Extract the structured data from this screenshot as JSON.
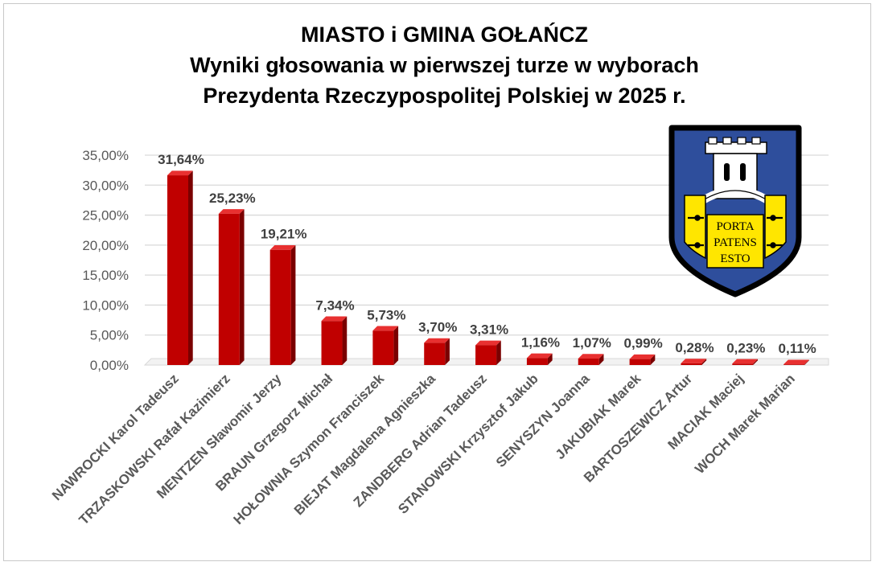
{
  "chart_data": {
    "type": "bar",
    "title": "MIASTO i GMINA GOŁAŃCZ",
    "subtitle": [
      "Wyniki głosowania w pierwszej turze w wyborach",
      "Prezydenta Rzeczypospolitej Polskiej w 2025 r."
    ],
    "xlabel": "",
    "ylabel": "",
    "ylim": [
      0,
      35
    ],
    "yticks": [
      "0,00%",
      "5,00%",
      "10,00%",
      "15,00%",
      "20,00%",
      "25,00%",
      "30,00%",
      "35,00%"
    ],
    "grid": true,
    "legend": "none",
    "categories": [
      "NAWROCKI Karol Tadeusz",
      "TRZASKOWSKI Rafał Kazimierz",
      "MENTZEN Sławomir Jerzy",
      "BRAUN Grzegorz Michał",
      "HOŁOWNIA Szymon Franciszek",
      "BIEJAT Magdalena Agnieszka",
      "ZANDBERG Adrian Tadeusz",
      "STANOWSKI Krzysztof Jakub",
      "SENYSZYN Joanna",
      "JAKUBIAK Marek",
      "BARTOSZEWICZ Artur",
      "MACIAK Maciej",
      "WOCH Marek Marian"
    ],
    "values": [
      31.64,
      25.23,
      19.21,
      7.34,
      5.73,
      3.7,
      3.31,
      1.16,
      1.07,
      0.99,
      0.28,
      0.23,
      0.11
    ],
    "data_labels": [
      "31,64%",
      "25,23%",
      "19,21%",
      "7,34%",
      "5,73%",
      "3,70%",
      "3,31%",
      "1,16%",
      "1,07%",
      "0,99%",
      "0,28%",
      "0,23%",
      "0,11%"
    ],
    "colors": {
      "bar_front": "#c00000",
      "bar_side": "#7a0000",
      "bar_top": "#e83030",
      "grid": "#d9d9d9",
      "label": "#404040"
    }
  },
  "crest": {
    "motto": [
      "PORTA",
      "PATENS",
      "ESTO"
    ],
    "colors": {
      "shield": "#2e4e9c",
      "gold": "#ffe600",
      "border": "#000000",
      "tower": "#ffffff"
    }
  }
}
